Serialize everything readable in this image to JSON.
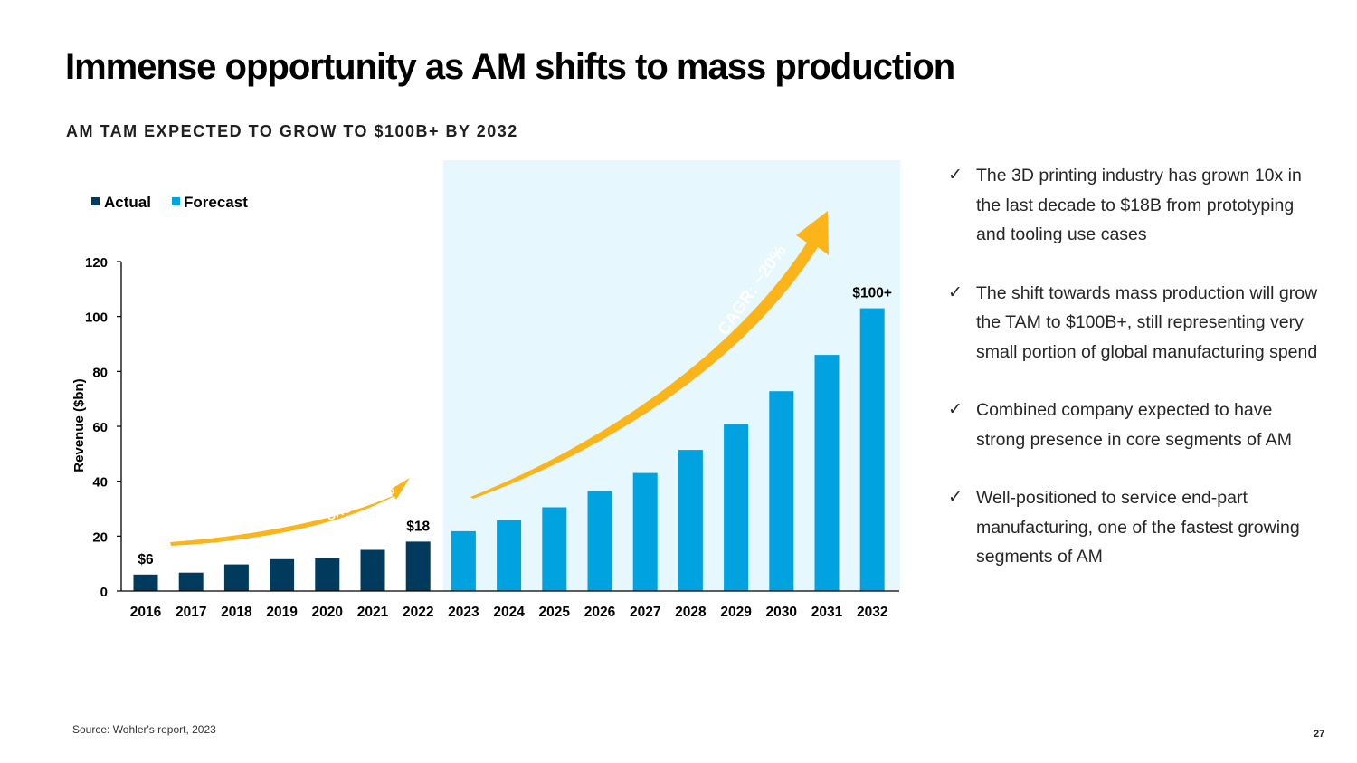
{
  "slide": {
    "title": "Immense opportunity as AM shifts to mass production",
    "subtitle": "AM TAM EXPECTED TO GROW TO $100B+ BY 2032",
    "source": "Source: Wohler's report, 2023",
    "page_number": "27"
  },
  "bullets": [
    {
      "icon": "checkmark-icon",
      "text": "The 3D printing industry has grown 10x in the last decade to $18B from prototyping and tooling use cases"
    },
    {
      "icon": "checkmark-icon",
      "text": "The shift towards mass production will grow the TAM to $100B+, still representing very small portion of global manufacturing spend"
    },
    {
      "icon": "checkmark-icon",
      "text": "Combined company expected to have strong presence in core segments of AM"
    },
    {
      "icon": "checkmark-icon",
      "text": "Well-positioned to service end-part manufacturing, one of the fastest growing segments of AM"
    }
  ],
  "check_glyph": "✓",
  "chart_data": {
    "type": "bar",
    "title": "AM TAM EXPECTED TO GROW TO $100B+ BY 2032",
    "xlabel": "",
    "ylabel": "Revenue ($bn)",
    "ylim": [
      0,
      120
    ],
    "yticks": [
      0,
      20,
      40,
      60,
      80,
      100,
      120
    ],
    "grid": false,
    "legend_position": "top-left",
    "categories": [
      "2016",
      "2017",
      "2018",
      "2019",
      "2020",
      "2021",
      "2022",
      "2023",
      "2024",
      "2025",
      "2026",
      "2027",
      "2028",
      "2029",
      "2030",
      "2031",
      "2032"
    ],
    "series": [
      {
        "name": "Actual",
        "color": "#003a5d",
        "values": [
          6,
          6.7,
          9.7,
          11.6,
          12,
          15,
          18,
          null,
          null,
          null,
          null,
          null,
          null,
          null,
          null,
          null,
          null
        ]
      },
      {
        "name": "Forecast",
        "color": "#00a3e0",
        "values": [
          null,
          null,
          null,
          null,
          null,
          null,
          null,
          21.8,
          25.8,
          30.5,
          36.4,
          43,
          51.4,
          60.8,
          72.8,
          86,
          103
        ]
      }
    ],
    "data_labels": [
      {
        "category": "2016",
        "text": "$6"
      },
      {
        "category": "2022",
        "text": "$18"
      },
      {
        "category": "2032",
        "text": "$100+"
      }
    ],
    "forecast_region": {
      "from": "2023",
      "to": "2032",
      "color": "#e6f7fd"
    },
    "annotations": [
      {
        "text": "CAGR: ~20%",
        "from": "2016",
        "to": "2022",
        "color": "#fbb41a"
      },
      {
        "text": "CAGR: ~20%",
        "from": "2023",
        "to": "2032",
        "color": "#fbb41a"
      }
    ]
  }
}
